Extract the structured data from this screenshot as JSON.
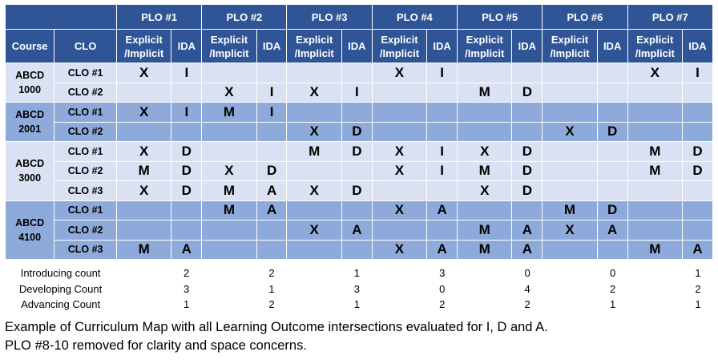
{
  "plo_headers": [
    "PLO #1",
    "PLO #2",
    "PLO #3",
    "PLO #4",
    "PLO #5",
    "PLO #6",
    "PLO #7"
  ],
  "col_headers": {
    "course": "Course",
    "clo": "CLO",
    "explicit_line1": "Explicit",
    "explicit_line2": "/Implicit",
    "ida": "IDA"
  },
  "courses": [
    {
      "name_line1": "ABCD",
      "name_line2": "1000",
      "shade": "light",
      "rows": [
        {
          "clo": "CLO #1",
          "cells": [
            "X",
            "I",
            "",
            "",
            "",
            "",
            "X",
            "I",
            "",
            "",
            "",
            "",
            "X",
            "I"
          ]
        },
        {
          "clo": "CLO #2",
          "cells": [
            "",
            "",
            "X",
            "I",
            "X",
            "I",
            "",
            "",
            "M",
            "D",
            "",
            "",
            "",
            ""
          ]
        }
      ]
    },
    {
      "name_line1": "ABCD",
      "name_line2": "2001",
      "shade": "mid",
      "rows": [
        {
          "clo": "CLO #1",
          "cells": [
            "X",
            "I",
            "M",
            "I",
            "",
            "",
            "",
            "",
            "",
            "",
            "",
            "",
            "",
            ""
          ]
        },
        {
          "clo": "CLO #2",
          "cells": [
            "",
            "",
            "",
            "",
            "X",
            "D",
            "",
            "",
            "",
            "",
            "X",
            "D",
            "",
            ""
          ]
        }
      ]
    },
    {
      "name_line1": "ABCD",
      "name_line2": "3000",
      "shade": "light",
      "rows": [
        {
          "clo": "CLO #1",
          "cells": [
            "X",
            "D",
            "",
            "",
            "M",
            "D",
            "X",
            "I",
            "X",
            "D",
            "",
            "",
            "M",
            "D"
          ]
        },
        {
          "clo": "CLO #2",
          "cells": [
            "M",
            "D",
            "X",
            "D",
            "",
            "",
            "X",
            "I",
            "M",
            "D",
            "",
            "",
            "M",
            "D"
          ]
        },
        {
          "clo": "CLO #3",
          "cells": [
            "X",
            "D",
            "M",
            "A",
            "X",
            "D",
            "",
            "",
            "X",
            "D",
            "",
            "",
            "",
            ""
          ]
        }
      ]
    },
    {
      "name_line1": "ABCD",
      "name_line2": "4100",
      "shade": "mid",
      "rows": [
        {
          "clo": "CLO #1",
          "cells": [
            "",
            "",
            "M",
            "A",
            "",
            "",
            "X",
            "A",
            "",
            "",
            "M",
            "D",
            "",
            ""
          ]
        },
        {
          "clo": "CLO #2",
          "cells": [
            "",
            "",
            "",
            "",
            "X",
            "A",
            "",
            "",
            "M",
            "A",
            "X",
            "A",
            "",
            ""
          ]
        },
        {
          "clo": "CLO #3",
          "cells": [
            "M",
            "A",
            "",
            "",
            "",
            "",
            "X",
            "A",
            "M",
            "A",
            "",
            "",
            "M",
            "A"
          ]
        }
      ]
    }
  ],
  "counts": [
    {
      "label": "Introducing count",
      "values": [
        "2",
        "2",
        "1",
        "3",
        "0",
        "0",
        "1"
      ]
    },
    {
      "label": "Developing Count",
      "values": [
        "3",
        "1",
        "3",
        "0",
        "4",
        "2",
        "2"
      ]
    },
    {
      "label": "Advancing Count",
      "values": [
        "1",
        "2",
        "1",
        "2",
        "2",
        "1",
        "1"
      ]
    }
  ],
  "caption": {
    "line1": "Example of Curriculum Map with all Learning Outcome intersections evaluated for I, D and A.",
    "line2": "PLO #8-10 removed for clarity and space concerns."
  },
  "colors": {
    "header_blue": "#2f5597",
    "light_band": "#d9e1f2",
    "mid_band": "#8eaadb"
  }
}
